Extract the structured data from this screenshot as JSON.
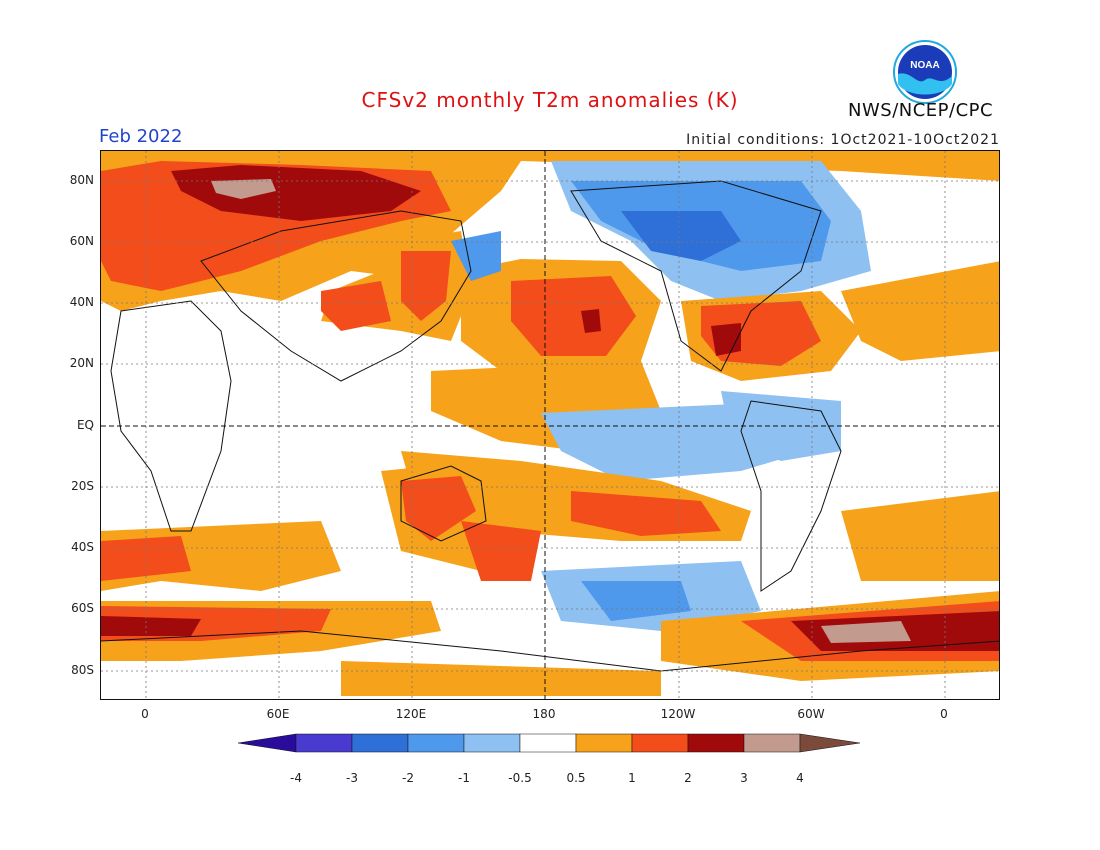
{
  "header": {
    "title": "CFSv2 monthly T2m anomalies (K)",
    "agency": "NWS/NCEP/CPC",
    "logo_text": "NOAA",
    "valid_month": "Feb 2022",
    "initial_conditions": "Initial conditions: 1Oct2021-10Oct2021"
  },
  "axes": {
    "lat_labels": [
      "80N",
      "60N",
      "40N",
      "20N",
      "EQ",
      "20S",
      "40S",
      "60S",
      "80S"
    ],
    "lon_labels": [
      "0",
      "60E",
      "120E",
      "180",
      "120W",
      "60W",
      "0"
    ]
  },
  "legend": {
    "ticks": [
      "-4",
      "-3",
      "-2",
      "-1",
      "-0.5",
      "0.5",
      "1",
      "2",
      "3",
      "4"
    ],
    "colors": [
      "#2a0c9c",
      "#4a3bd0",
      "#2f6fd8",
      "#4f99ec",
      "#8ec1f2",
      "#ffffff",
      "#f7a21b",
      "#f24d1b",
      "#a10a0a",
      "#c29a8e",
      "#7b4a3a"
    ]
  }
}
